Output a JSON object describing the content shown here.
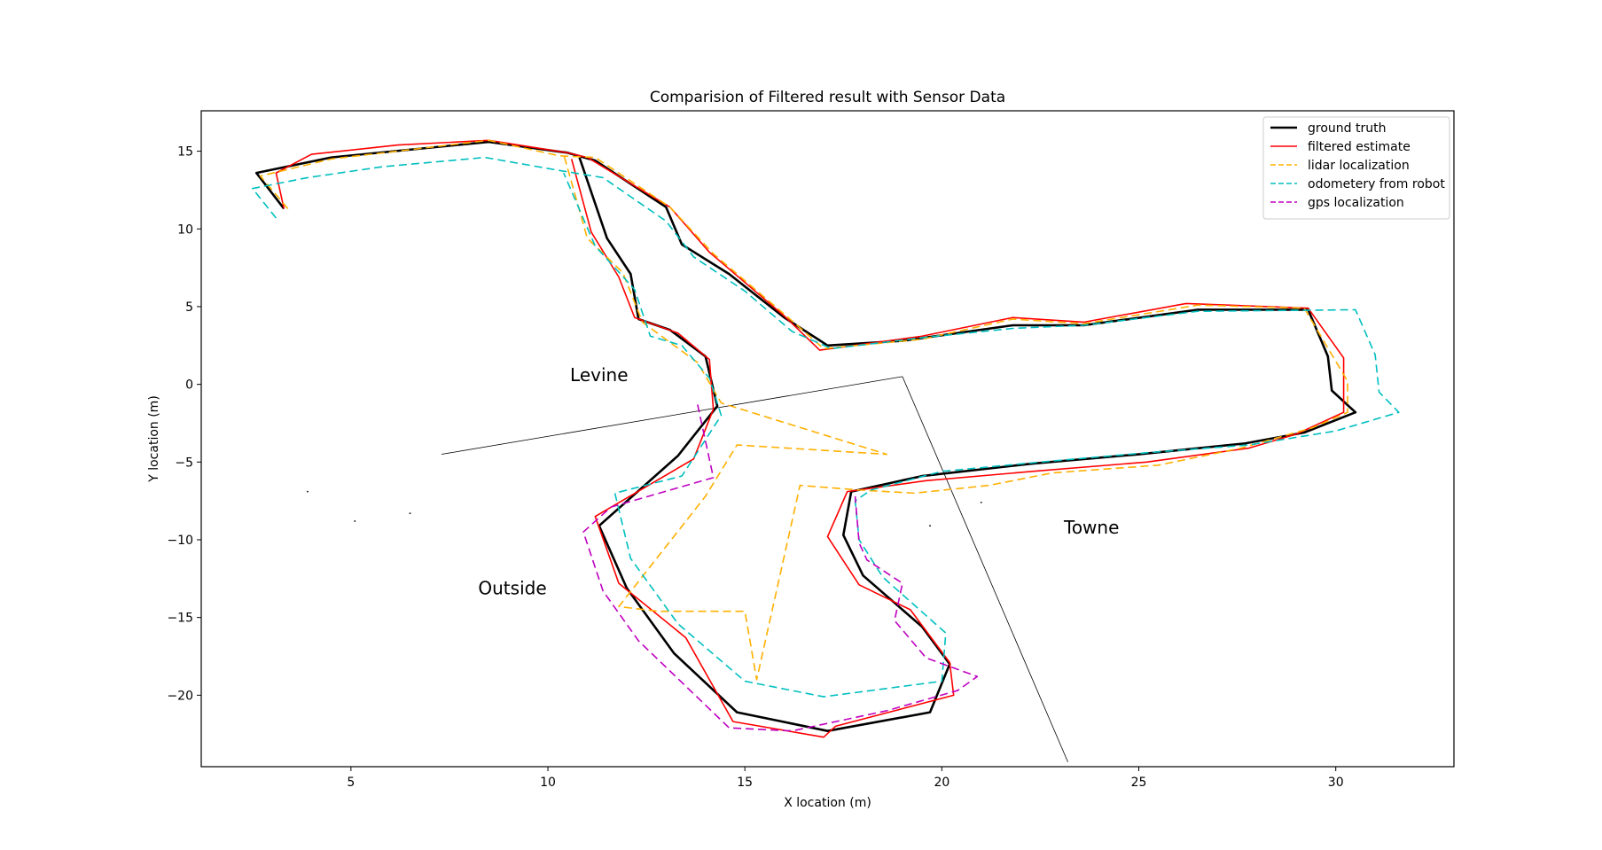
{
  "chart_data": {
    "type": "line",
    "title": "Comparision of Filtered result with Sensor Data",
    "xlabel": "X location (m)",
    "ylabel": "Y location (m)",
    "xlim": [
      1.2,
      33.0
    ],
    "ylim": [
      -24.6,
      17.6
    ],
    "xticks": [
      5,
      10,
      15,
      20,
      25,
      30
    ],
    "yticks": [
      -20,
      -15,
      -10,
      -5,
      0,
      5,
      10,
      15
    ],
    "grid": false,
    "legend_position": "top-right",
    "series": [
      {
        "name": "ground truth",
        "color": "#000000",
        "style": "solid",
        "width": "thick",
        "points": [
          [
            3.3,
            11.3
          ],
          [
            2.6,
            13.6
          ],
          [
            4.5,
            14.6
          ],
          [
            8.5,
            15.6
          ],
          [
            10.5,
            14.9
          ],
          [
            11.2,
            14.4
          ],
          [
            13.0,
            11.4
          ],
          [
            13.4,
            9.0
          ],
          [
            14.6,
            7.1
          ],
          [
            16.0,
            4.3
          ],
          [
            17.1,
            2.5
          ],
          [
            19.0,
            2.8
          ],
          [
            21.8,
            3.8
          ],
          [
            23.6,
            3.8
          ],
          [
            26.5,
            4.8
          ],
          [
            29.3,
            4.8
          ],
          [
            29.8,
            1.8
          ],
          [
            29.9,
            -0.4
          ],
          [
            30.5,
            -1.8
          ],
          [
            29.2,
            -3.1
          ],
          [
            27.7,
            -3.8
          ],
          [
            25.0,
            -4.5
          ],
          [
            22.3,
            -5.1
          ],
          [
            19.5,
            -5.9
          ],
          [
            17.7,
            -6.9
          ],
          [
            17.5,
            -9.7
          ],
          [
            18.0,
            -12.3
          ],
          [
            19.5,
            -15.6
          ],
          [
            20.2,
            -18.0
          ],
          [
            19.7,
            -21.1
          ],
          [
            17.1,
            -22.3
          ],
          [
            14.8,
            -21.1
          ],
          [
            13.2,
            -17.3
          ],
          [
            12.0,
            -13.1
          ],
          [
            11.3,
            -9.1
          ],
          [
            13.3,
            -4.6
          ],
          [
            14.3,
            -1.4
          ],
          [
            14.0,
            1.8
          ],
          [
            13.1,
            3.5
          ],
          [
            12.3,
            4.2
          ],
          [
            12.1,
            7.1
          ],
          [
            11.5,
            9.4
          ],
          [
            10.8,
            14.6
          ]
        ]
      },
      {
        "name": "filtered estimate",
        "color": "#ff0000",
        "style": "solid",
        "width": "normal",
        "points": [
          [
            3.3,
            11.3
          ],
          [
            3.1,
            13.6
          ],
          [
            4.0,
            14.8
          ],
          [
            6.2,
            15.4
          ],
          [
            8.5,
            15.7
          ],
          [
            10.5,
            14.9
          ],
          [
            11.0,
            14.6
          ],
          [
            13.1,
            11.4
          ],
          [
            14.1,
            8.5
          ],
          [
            16.0,
            4.4
          ],
          [
            16.9,
            2.2
          ],
          [
            19.5,
            3.1
          ],
          [
            21.8,
            4.3
          ],
          [
            23.6,
            4.0
          ],
          [
            26.2,
            5.2
          ],
          [
            29.3,
            4.9
          ],
          [
            30.2,
            1.7
          ],
          [
            30.2,
            -1.8
          ],
          [
            29.0,
            -3.2
          ],
          [
            27.8,
            -4.1
          ],
          [
            25.2,
            -5.0
          ],
          [
            22.3,
            -5.6
          ],
          [
            19.6,
            -6.2
          ],
          [
            17.6,
            -6.9
          ],
          [
            17.1,
            -9.8
          ],
          [
            17.9,
            -12.9
          ],
          [
            19.2,
            -14.5
          ],
          [
            20.2,
            -17.9
          ],
          [
            20.3,
            -20.0
          ],
          [
            17.3,
            -22.0
          ],
          [
            17.0,
            -22.7
          ],
          [
            14.7,
            -21.7
          ],
          [
            13.5,
            -16.3
          ],
          [
            11.8,
            -12.8
          ],
          [
            11.2,
            -8.5
          ],
          [
            13.7,
            -4.8
          ],
          [
            14.2,
            -1.6
          ],
          [
            14.1,
            1.6
          ],
          [
            13.3,
            3.3
          ],
          [
            12.2,
            4.3
          ],
          [
            11.8,
            6.9
          ],
          [
            11.1,
            9.8
          ],
          [
            10.6,
            14.5
          ]
        ]
      },
      {
        "name": "lidar localization",
        "color": "#ffb000",
        "style": "dashed",
        "width": "normal",
        "points": [
          [
            3.4,
            11.3
          ],
          [
            2.7,
            13.4
          ],
          [
            4.5,
            14.5
          ],
          [
            8.5,
            15.7
          ],
          [
            10.3,
            14.7
          ],
          [
            11.2,
            14.6
          ],
          [
            13.1,
            11.4
          ],
          [
            14.2,
            8.4
          ],
          [
            16.1,
            4.3
          ],
          [
            17.0,
            2.3
          ],
          [
            19.5,
            2.9
          ],
          [
            21.8,
            4.2
          ],
          [
            23.6,
            3.9
          ],
          [
            26.5,
            5.1
          ],
          [
            29.2,
            4.9
          ],
          [
            30.3,
            0.2
          ],
          [
            30.3,
            -1.8
          ],
          [
            29.4,
            -2.8
          ],
          [
            27.6,
            -4.1
          ],
          [
            25.5,
            -5.2
          ],
          [
            22.8,
            -5.7
          ],
          [
            21.2,
            -6.5
          ],
          [
            19.3,
            -7.0
          ],
          [
            17.9,
            -6.8
          ],
          [
            16.4,
            -6.5
          ],
          [
            15.3,
            -19.0
          ],
          [
            15.0,
            -14.6
          ],
          [
            12.8,
            -14.6
          ],
          [
            11.8,
            -14.3
          ],
          [
            14.0,
            -7.2
          ],
          [
            14.8,
            -3.9
          ],
          [
            18.6,
            -4.5
          ],
          [
            14.4,
            -1.2
          ],
          [
            13.8,
            1.4
          ],
          [
            12.4,
            4.0
          ],
          [
            11.9,
            7.2
          ],
          [
            11.0,
            9.4
          ],
          [
            10.4,
            14.8
          ]
        ]
      },
      {
        "name": "odometery from robot",
        "color": "#00bfbf",
        "style": "dashed",
        "width": "normal",
        "points": [
          [
            3.1,
            10.7
          ],
          [
            2.5,
            12.6
          ],
          [
            3.9,
            13.3
          ],
          [
            5.8,
            14.0
          ],
          [
            8.4,
            14.6
          ],
          [
            10.2,
            13.8
          ],
          [
            11.4,
            13.3
          ],
          [
            13.0,
            10.5
          ],
          [
            13.7,
            8.2
          ],
          [
            15.0,
            6.0
          ],
          [
            16.2,
            3.4
          ],
          [
            17.2,
            2.3
          ],
          [
            19.5,
            3.0
          ],
          [
            21.8,
            3.6
          ],
          [
            23.6,
            3.8
          ],
          [
            26.5,
            4.7
          ],
          [
            30.5,
            4.8
          ],
          [
            31.0,
            1.9
          ],
          [
            31.1,
            -0.5
          ],
          [
            31.6,
            -1.8
          ],
          [
            30.0,
            -3.0
          ],
          [
            27.8,
            -3.9
          ],
          [
            25.2,
            -4.4
          ],
          [
            22.5,
            -5.0
          ],
          [
            20.0,
            -5.6
          ],
          [
            18.2,
            -6.8
          ],
          [
            17.8,
            -7.5
          ],
          [
            17.9,
            -10.0
          ],
          [
            18.5,
            -12.4
          ],
          [
            20.1,
            -16.0
          ],
          [
            20.0,
            -19.1
          ],
          [
            17.0,
            -20.1
          ],
          [
            15.0,
            -19.1
          ],
          [
            13.3,
            -15.4
          ],
          [
            12.1,
            -11.2
          ],
          [
            11.7,
            -7.0
          ],
          [
            13.4,
            -5.9
          ],
          [
            14.4,
            -2.0
          ],
          [
            14.1,
            0.4
          ],
          [
            13.4,
            2.5
          ],
          [
            12.6,
            3.1
          ],
          [
            12.2,
            6.1
          ],
          [
            11.2,
            8.9
          ],
          [
            10.4,
            13.6
          ]
        ]
      },
      {
        "name": "gps localization",
        "color": "#bf00bf",
        "style": "dashed",
        "width": "normal",
        "points": [
          [
            13.8,
            -1.3
          ],
          [
            14.2,
            -6.0
          ],
          [
            11.6,
            -7.9
          ],
          [
            10.9,
            -9.5
          ],
          [
            11.4,
            -13.3
          ],
          [
            12.3,
            -16.5
          ],
          [
            14.6,
            -22.1
          ],
          [
            16.2,
            -22.3
          ],
          [
            18.6,
            -21.0
          ],
          [
            20.4,
            -19.7
          ],
          [
            20.9,
            -18.8
          ],
          [
            19.6,
            -17.6
          ],
          [
            18.8,
            -15.2
          ],
          [
            19.0,
            -12.8
          ],
          [
            18.1,
            -11.3
          ],
          [
            17.9,
            -10.2
          ],
          [
            17.8,
            -7.2
          ]
        ]
      }
    ],
    "annotations": [
      {
        "text": "Levine",
        "x": 11.3,
        "y": 0.2
      },
      {
        "text": "Towne",
        "x": 23.8,
        "y": -9.6
      },
      {
        "text": "Outside",
        "x": 9.1,
        "y": -13.5
      }
    ],
    "boundary_lines": [
      {
        "color": "#000000",
        "points": [
          [
            7.3,
            -4.5
          ],
          [
            19.0,
            0.5
          ]
        ]
      },
      {
        "color": "#000000",
        "points": [
          [
            19.0,
            0.5
          ],
          [
            23.2,
            -24.3
          ]
        ]
      }
    ],
    "scatter_dots": [
      [
        3.9,
        -6.9
      ],
      [
        5.1,
        -8.8
      ],
      [
        6.5,
        -8.3
      ],
      [
        21.0,
        -7.6
      ],
      [
        19.7,
        -9.1
      ]
    ]
  }
}
